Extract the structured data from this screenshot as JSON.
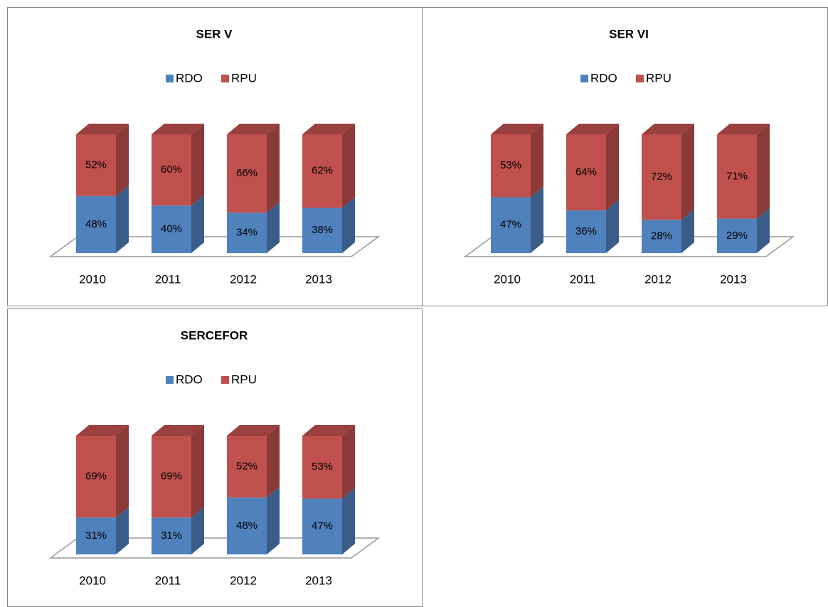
{
  "chart_data": [
    {
      "type": "bar",
      "stacked": true,
      "title": "SER V",
      "categories": [
        "2010",
        "2011",
        "2012",
        "2013"
      ],
      "series": [
        {
          "name": "RDO",
          "color": "#4f81bd",
          "values": [
            48,
            40,
            34,
            38
          ],
          "value_labels": [
            "48%",
            "40%",
            "34%",
            "38%"
          ]
        },
        {
          "name": "RPU",
          "color": "#c0504d",
          "values": [
            52,
            60,
            66,
            62
          ],
          "value_labels": [
            "52%",
            "60%",
            "66%",
            "62%"
          ]
        }
      ]
    },
    {
      "type": "bar",
      "stacked": true,
      "title": "SER VI",
      "categories": [
        "2010",
        "2011",
        "2012",
        "2013"
      ],
      "series": [
        {
          "name": "RDO",
          "color": "#4f81bd",
          "values": [
            47,
            36,
            28,
            29
          ],
          "value_labels": [
            "47%",
            "36%",
            "28%",
            "29%"
          ]
        },
        {
          "name": "RPU",
          "color": "#c0504d",
          "values": [
            53,
            64,
            72,
            71
          ],
          "value_labels": [
            "53%",
            "64%",
            "72%",
            "71%"
          ]
        }
      ]
    },
    {
      "type": "bar",
      "stacked": true,
      "title": "SERCEFOR",
      "categories": [
        "2010",
        "2011",
        "2012",
        "2013"
      ],
      "series": [
        {
          "name": "RDO",
          "color": "#4f81bd",
          "values": [
            31,
            31,
            48,
            47
          ],
          "value_labels": [
            "31%",
            "31%",
            "48%",
            "47%"
          ]
        },
        {
          "name": "RPU",
          "color": "#c0504d",
          "values": [
            69,
            69,
            52,
            53
          ],
          "value_labels": [
            "69%",
            "69%",
            "52%",
            "53%"
          ]
        }
      ]
    }
  ]
}
